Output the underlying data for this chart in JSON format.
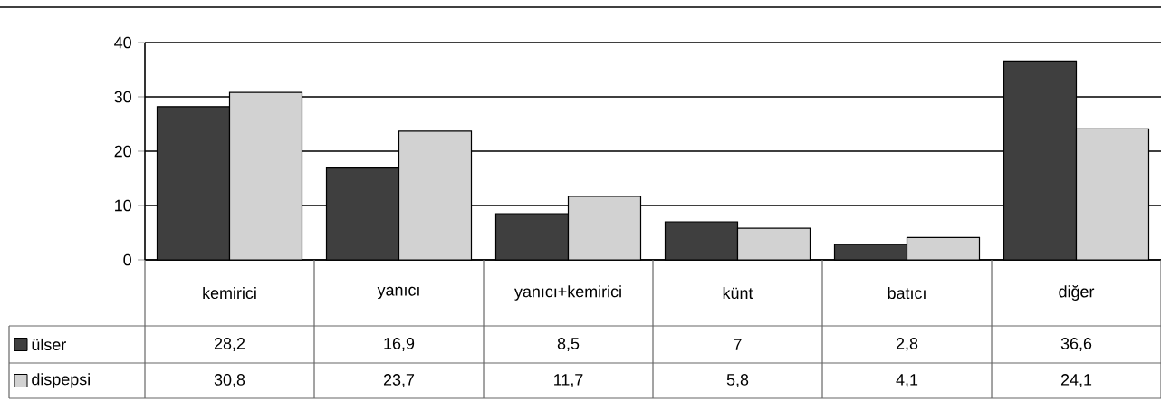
{
  "chart_data": {
    "type": "bar",
    "categories": [
      "kemirici",
      "yanıcı",
      "yanıcı+kemirici",
      "künt",
      "batıcı",
      "diğer"
    ],
    "series": [
      {
        "name": "ülser",
        "color": "#3f3f3f",
        "values": [
          28.2,
          16.9,
          8.5,
          7,
          2.8,
          36.6
        ],
        "value_labels": [
          "28,2",
          "16,9",
          "8,5",
          "7",
          "2,8",
          "36,6"
        ]
      },
      {
        "name": "dispepsi",
        "color": "#d2d2d2",
        "values": [
          30.8,
          23.7,
          11.7,
          5.8,
          4.1,
          24.1
        ],
        "value_labels": [
          "30,8",
          "23,7",
          "11,7",
          "5,8",
          "4,1",
          "24,1"
        ]
      }
    ],
    "ylim": [
      0,
      40
    ],
    "yticks": [
      0,
      10,
      20,
      30,
      40
    ],
    "grid": "y",
    "legend": "bottom"
  }
}
